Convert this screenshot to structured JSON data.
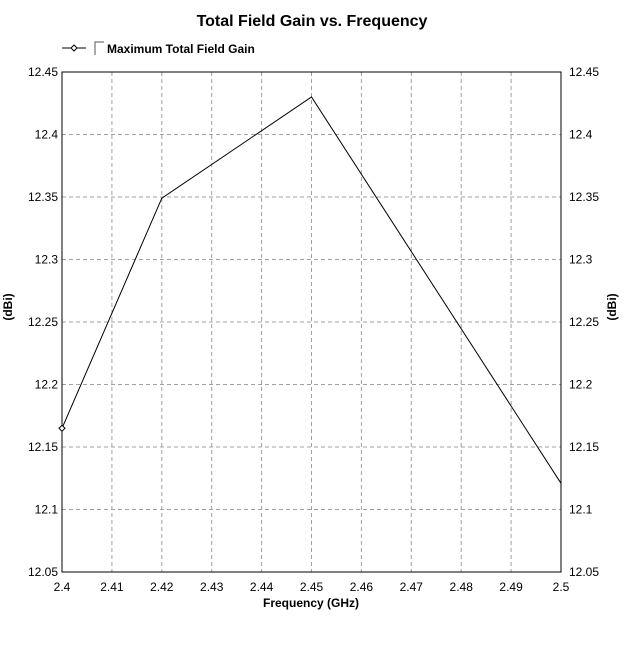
{
  "chart_data": {
    "type": "line",
    "title": "Total Field Gain vs. Frequency",
    "xlabel": "Frequency (GHz)",
    "ylabel": "(dBi)",
    "ylabel_right": "(dBi)",
    "xlim": [
      2.4,
      2.5
    ],
    "ylim": [
      12.05,
      12.45
    ],
    "x_ticks": [
      "2.4",
      "2.41",
      "2.42",
      "2.43",
      "2.44",
      "2.45",
      "2.46",
      "2.47",
      "2.48",
      "2.49",
      "2.5"
    ],
    "y_ticks": [
      "12.05",
      "12.1",
      "12.15",
      "12.2",
      "12.25",
      "12.3",
      "12.35",
      "12.4",
      "12.45"
    ],
    "grid": true,
    "legend_position": "top-left",
    "series": [
      {
        "name": "Maximum Total Field Gain",
        "color": "#000000",
        "x": [
          2.4,
          2.42,
          2.45,
          2.5
        ],
        "y": [
          12.165,
          12.349,
          12.43,
          12.121
        ]
      }
    ]
  }
}
